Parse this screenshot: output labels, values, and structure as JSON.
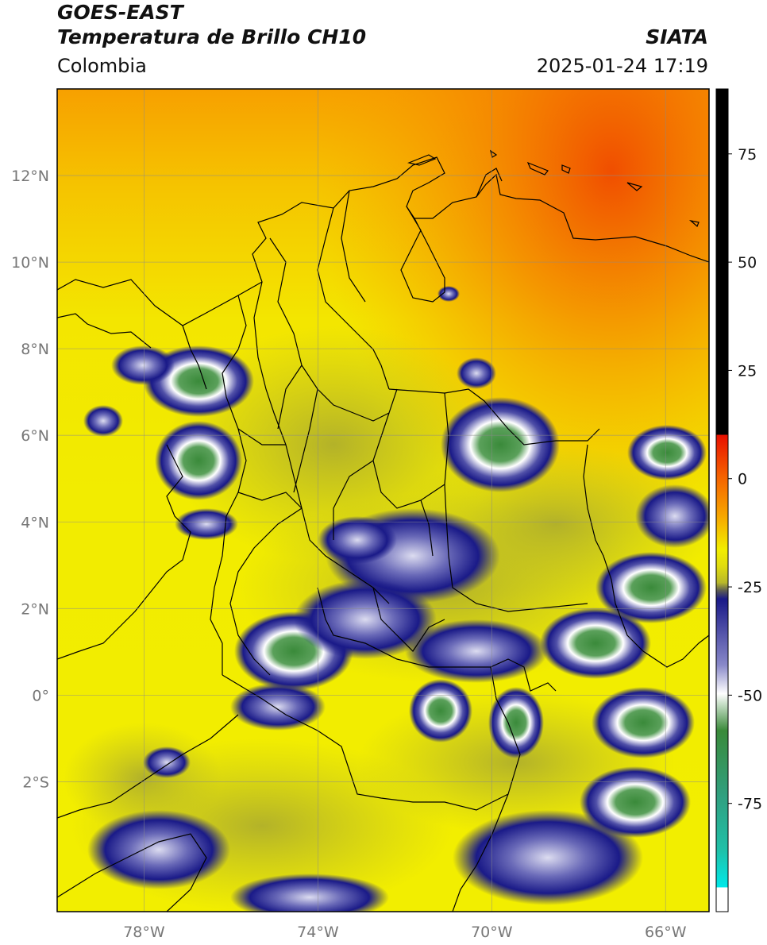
{
  "header": {
    "line1": "GOES-EAST",
    "line2": "Temperatura de Brillo CH10",
    "region": "Colombia",
    "source": "SIATA",
    "timestamp": "2025-01-24 17:19"
  },
  "map": {
    "lon_range": [
      -80,
      -65
    ],
    "lat_range": [
      -5,
      14
    ],
    "lat_ticks": [
      {
        "value": 12,
        "label": "12°N"
      },
      {
        "value": 10,
        "label": "10°N"
      },
      {
        "value": 8,
        "label": "8°N"
      },
      {
        "value": 6,
        "label": "6°N"
      },
      {
        "value": 4,
        "label": "4°N"
      },
      {
        "value": 2,
        "label": "2°N"
      },
      {
        "value": 0,
        "label": "0°"
      },
      {
        "value": -2,
        "label": "2°S"
      }
    ],
    "lon_ticks": [
      {
        "value": -78,
        "label": "78°W"
      },
      {
        "value": -74,
        "label": "74°W"
      },
      {
        "value": -70,
        "label": "70°W"
      },
      {
        "value": -66,
        "label": "66°W"
      }
    ],
    "grid": true
  },
  "colorbar": {
    "range": [
      -100,
      90
    ],
    "ticks": [
      {
        "value": 75,
        "label": "75"
      },
      {
        "value": 50,
        "label": "50"
      },
      {
        "value": 25,
        "label": "25"
      },
      {
        "value": 0,
        "label": "0"
      },
      {
        "value": -25,
        "label": "-25"
      },
      {
        "value": -50,
        "label": "-50"
      },
      {
        "value": -75,
        "label": "-75"
      }
    ],
    "colors": {
      "warm_limit": "#000000",
      "red": "#e81000",
      "orange": "#f79400",
      "yellow": "#f2ee00",
      "olive": "#b8b82a",
      "gray": "#5a5a55",
      "navy": "#1a1a88",
      "white": "#ffffff",
      "green": "#3a8a3a",
      "teal": "#20c0a8",
      "cyan": "#00e8e8"
    }
  }
}
